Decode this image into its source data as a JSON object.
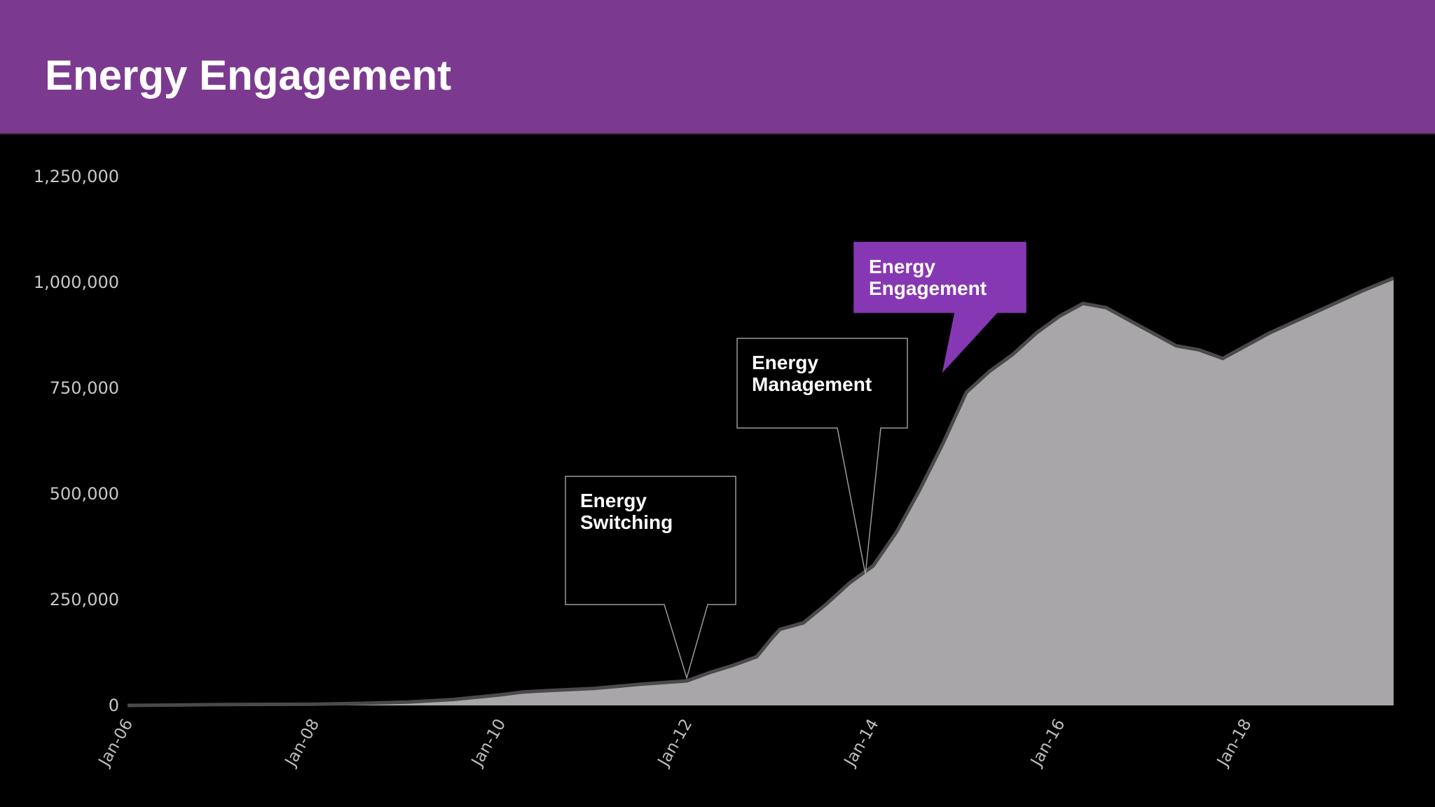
{
  "header": {
    "title": "Energy Engagement",
    "background_color": "#7b3a8f"
  },
  "chart_data": {
    "type": "area",
    "title": "",
    "xlabel": "",
    "ylabel": "",
    "x_tick_labels": [
      "Jan-06",
      "Jan-08",
      "Jan-10",
      "Jan-12",
      "Jan-14",
      "Jan-16",
      "Jan-18"
    ],
    "y_tick_labels": [
      "0",
      "250,000",
      "500,000",
      "750,000",
      "1,000,000",
      "1,250,000"
    ],
    "y_ticks": [
      0,
      250000,
      500000,
      750000,
      1000000,
      1250000
    ],
    "ylim": [
      0,
      1250000
    ],
    "xlim": [
      "2006-01",
      "2019-09"
    ],
    "grid": false,
    "series": [
      {
        "fill_color": "#a8a6a9",
        "edge_color": "#4a4a4a",
        "x": [
          "2006-01",
          "2007-01",
          "2008-01",
          "2008-07",
          "2009-01",
          "2009-07",
          "2010-01",
          "2010-04",
          "2010-07",
          "2011-01",
          "2011-07",
          "2012-01",
          "2012-04",
          "2012-07",
          "2012-10",
          "2012-12",
          "2013-01",
          "2013-04",
          "2013-07",
          "2013-10",
          "2014-01",
          "2014-04",
          "2014-07",
          "2014-10",
          "2015-01",
          "2015-04",
          "2015-07",
          "2015-10",
          "2016-01",
          "2016-04",
          "2016-07",
          "2016-10",
          "2017-01",
          "2017-04",
          "2017-07",
          "2017-10",
          "2018-01",
          "2018-04",
          "2018-07",
          "2018-10",
          "2019-01",
          "2019-04",
          "2019-08"
        ],
        "values": [
          0,
          2000,
          3000,
          5000,
          8000,
          14000,
          25000,
          32000,
          35000,
          40000,
          50000,
          58000,
          78000,
          95000,
          115000,
          160000,
          180000,
          195000,
          240000,
          290000,
          330000,
          410000,
          510000,
          620000,
          740000,
          790000,
          830000,
          880000,
          920000,
          950000,
          940000,
          910000,
          880000,
          850000,
          840000,
          820000,
          850000,
          880000,
          905000,
          930000,
          955000,
          980000,
          1010000
        ]
      }
    ],
    "annotations": [
      {
        "lines": [
          "Energy",
          "Switching"
        ],
        "x": "2012-01",
        "y": 65000,
        "fill": "#000000",
        "border": "#9a9a9a"
      },
      {
        "lines": [
          "Energy",
          "Management"
        ],
        "x": "2013-12",
        "y": 310000,
        "fill": "#000000",
        "border": "#9a9a9a"
      },
      {
        "lines": [
          "Energy",
          "Engagement"
        ],
        "x": "2014-10",
        "y": 790000,
        "fill": "#8638b4",
        "border": "#8638b4"
      }
    ]
  }
}
